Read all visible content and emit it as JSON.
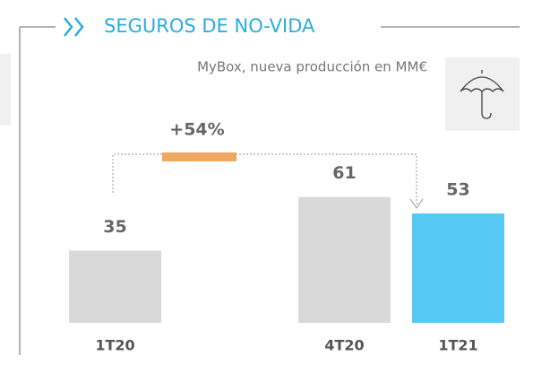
{
  "chart_data": {
    "type": "bar",
    "title": "SEGUROS DE NO-VIDA",
    "subtitle": "MyBox, nueva producción en MM€",
    "categories": [
      "1T20",
      "4T20",
      "1T21"
    ],
    "values": [
      35,
      61,
      53
    ],
    "colors": [
      "#d9d9d9",
      "#d9d9d9",
      "#56c9f3"
    ],
    "annotation": "+54%",
    "annotation_color": "#eea862",
    "title_color": "#2badde"
  }
}
